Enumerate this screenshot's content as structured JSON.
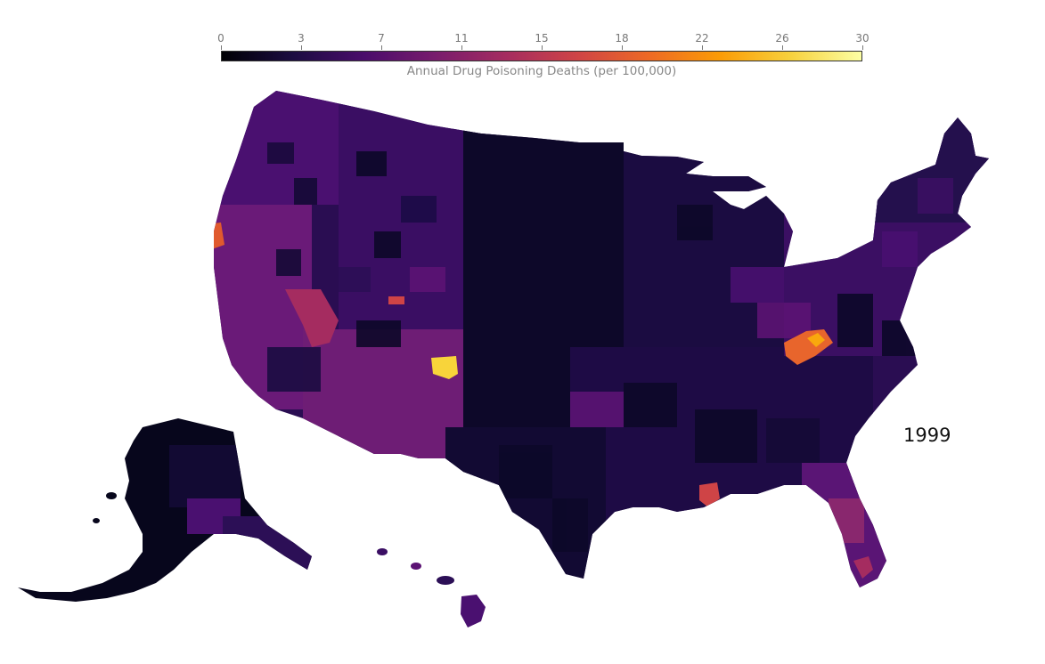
{
  "legend": {
    "title": "Annual Drug Poisoning Deaths (per 100,000)",
    "ticks": [
      "0",
      "3",
      "7",
      "11",
      "15",
      "18",
      "22",
      "26",
      "30"
    ],
    "min": 0,
    "max": 30,
    "colormap": [
      "#000004",
      "#1b0c41",
      "#4a0c6b",
      "#781c6d",
      "#a52c60",
      "#cf4446",
      "#ed6925",
      "#fb9b06",
      "#f7d13d",
      "#fcffa4"
    ]
  },
  "year": "1999",
  "map": {
    "region": "United States counties",
    "highlight_colors": {
      "very_low": "#0d0829",
      "low": "#2c0f56",
      "mid": "#5c1374",
      "elevated": "#8e2a6e",
      "high": "#cf4446",
      "very_high": "#f98e09",
      "max": "#f8d43a"
    }
  }
}
